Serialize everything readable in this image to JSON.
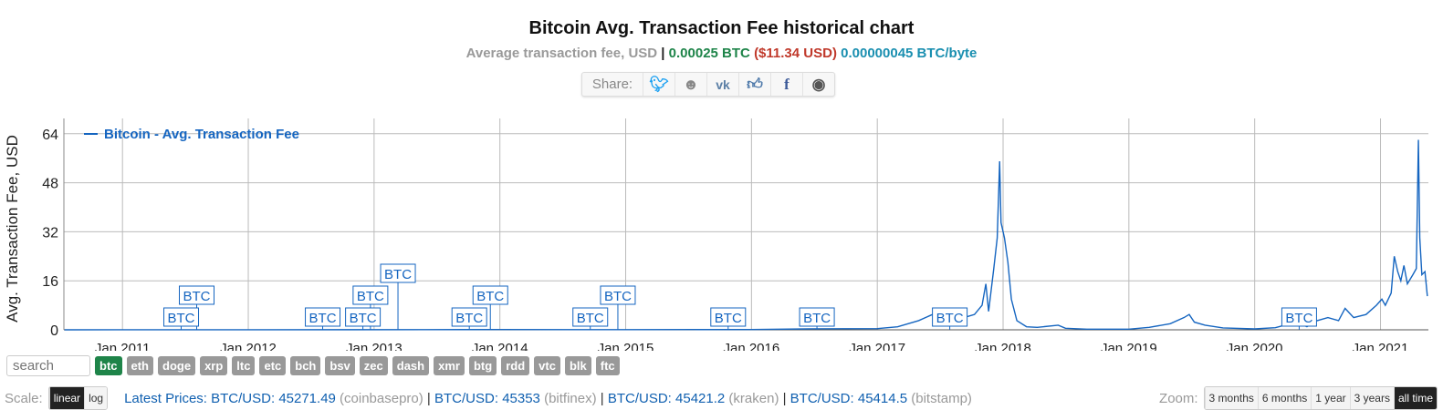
{
  "header": {
    "title": "Bitcoin Avg. Transaction Fee historical chart",
    "subtitle": {
      "label": "Average transaction fee, USD",
      "sep": " | ",
      "btc": "0.00025 BTC",
      "usd": "($11.34 USD)",
      "per_byte": "0.00000045 BTC/byte"
    }
  },
  "share": {
    "label": "Share:",
    "icons": [
      "twitter-icon",
      "reddit-icon",
      "vk-icon",
      "like-icon",
      "facebook-icon",
      "weibo-icon"
    ]
  },
  "colors": {
    "series": "#1565c0",
    "btc_tag": "#1e8449",
    "tag": "#999999"
  },
  "chart_data": {
    "type": "line",
    "ylabel": "Avg. Transaction Fee, USD",
    "yticks": [
      0,
      16,
      32,
      48,
      64
    ],
    "ylim": [
      0,
      69
    ],
    "xlim": [
      "2010-07-15",
      "2021-05-20"
    ],
    "xticks": [
      "Jan 2011",
      "Jan 2012",
      "Jan 2013",
      "Jan 2014",
      "Jan 2015",
      "Jan 2016",
      "Jan 2017",
      "Jan 2018",
      "Jan 2019",
      "Jan 2020",
      "Jan 2021"
    ],
    "grid": true,
    "legend": "top-left",
    "series": [
      {
        "name": "Bitcoin - Avg. Transaction Fee",
        "points": [
          [
            "2010-07-17",
            0
          ],
          [
            "2012-01-01",
            0.02
          ],
          [
            "2013-06-01",
            0.05
          ],
          [
            "2014-01-01",
            0.1
          ],
          [
            "2015-01-01",
            0.05
          ],
          [
            "2016-01-01",
            0.1
          ],
          [
            "2016-06-15",
            0.3
          ],
          [
            "2017-01-01",
            0.4
          ],
          [
            "2017-03-01",
            1
          ],
          [
            "2017-05-01",
            3
          ],
          [
            "2017-06-10",
            5
          ],
          [
            "2017-07-10",
            3
          ],
          [
            "2017-08-10",
            2.5
          ],
          [
            "2017-09-10",
            4
          ],
          [
            "2017-10-10",
            5
          ],
          [
            "2017-11-01",
            8
          ],
          [
            "2017-11-12",
            15
          ],
          [
            "2017-11-20",
            6
          ],
          [
            "2017-12-05",
            20
          ],
          [
            "2017-12-15",
            30
          ],
          [
            "2017-12-22",
            55
          ],
          [
            "2017-12-26",
            35
          ],
          [
            "2018-01-05",
            30
          ],
          [
            "2018-01-15",
            22
          ],
          [
            "2018-01-25",
            10
          ],
          [
            "2018-02-10",
            3
          ],
          [
            "2018-03-10",
            1
          ],
          [
            "2018-04-10",
            0.8
          ],
          [
            "2018-06-10",
            1.5
          ],
          [
            "2018-07-01",
            0.5
          ],
          [
            "2018-09-01",
            0.2
          ],
          [
            "2019-01-01",
            0.2
          ],
          [
            "2019-03-01",
            0.8
          ],
          [
            "2019-05-01",
            2
          ],
          [
            "2019-06-10",
            4
          ],
          [
            "2019-06-25",
            5
          ],
          [
            "2019-07-10",
            2.5
          ],
          [
            "2019-08-10",
            1.5
          ],
          [
            "2019-10-01",
            0.6
          ],
          [
            "2020-01-01",
            0.3
          ],
          [
            "2020-03-01",
            0.7
          ],
          [
            "2020-05-01",
            2.5
          ],
          [
            "2020-06-01",
            1
          ],
          [
            "2020-07-01",
            3
          ],
          [
            "2020-08-01",
            4
          ],
          [
            "2020-09-01",
            3
          ],
          [
            "2020-09-20",
            7
          ],
          [
            "2020-10-15",
            4
          ],
          [
            "2020-11-20",
            5
          ],
          [
            "2020-12-20",
            8
          ],
          [
            "2021-01-05",
            10
          ],
          [
            "2021-01-15",
            8
          ],
          [
            "2021-02-01",
            12
          ],
          [
            "2021-02-10",
            24
          ],
          [
            "2021-02-20",
            19
          ],
          [
            "2021-03-01",
            16
          ],
          [
            "2021-03-10",
            21
          ],
          [
            "2021-03-20",
            15
          ],
          [
            "2021-04-05",
            18
          ],
          [
            "2021-04-15",
            20
          ],
          [
            "2021-04-21",
            62
          ],
          [
            "2021-04-25",
            30
          ],
          [
            "2021-05-01",
            18
          ],
          [
            "2021-05-10",
            19
          ],
          [
            "2021-05-17",
            11
          ]
        ]
      }
    ],
    "annotations": {
      "label": "BTC",
      "dates": [
        "2011-05-01",
        "2011-06-15",
        "2012-06-15",
        "2012-10-10",
        "2012-11-01",
        "2013-01-20",
        "2013-08-15",
        "2013-10-15",
        "2014-08-01",
        "2014-10-20",
        "2015-09-05",
        "2016-05-20",
        "2017-06-10",
        "2020-03-20"
      ]
    }
  },
  "coins": {
    "search_placeholder": "search",
    "tags": [
      "btc",
      "eth",
      "doge",
      "xrp",
      "ltc",
      "etc",
      "bch",
      "bsv",
      "zec",
      "dash",
      "xmr",
      "btg",
      "rdd",
      "vtc",
      "blk",
      "ftc"
    ],
    "active": "btc"
  },
  "footer": {
    "scale_label": "Scale:",
    "scale_options": [
      "linear",
      "log"
    ],
    "scale_active": "linear",
    "latest_label": "Latest Prices:",
    "prices": [
      {
        "pair": "BTC/USD:",
        "value": "45271.49",
        "exchange": "(coinbasepro)"
      },
      {
        "pair": "BTC/USD:",
        "value": "45353",
        "exchange": "(bitfinex)"
      },
      {
        "pair": "BTC/USD:",
        "value": "45421.2",
        "exchange": "(kraken)"
      },
      {
        "pair": "BTC/USD:",
        "value": "45414.5",
        "exchange": "(bitstamp)"
      }
    ],
    "zoom_label": "Zoom:",
    "zoom_options": [
      "3 months",
      "6 months",
      "1 year",
      "3 years",
      "all time"
    ],
    "zoom_active": "all time"
  }
}
